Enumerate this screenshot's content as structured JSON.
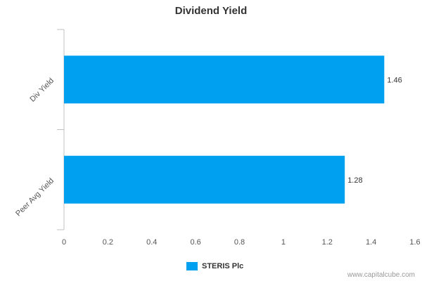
{
  "chart_data": {
    "type": "bar",
    "orientation": "horizontal",
    "title": "Dividend Yield",
    "categories": [
      "Div Yield",
      "Peer Avg Yield"
    ],
    "series": [
      {
        "name": "STERIS Plc",
        "values": [
          1.46,
          1.28
        ],
        "color": "#00a0f0"
      }
    ],
    "data_labels": [
      "1.46",
      "1.28"
    ],
    "xlim": [
      0,
      1.6
    ],
    "x_ticks": [
      "0",
      "0.2",
      "0.4",
      "0.6",
      "0.8",
      "1",
      "1.2",
      "1.4",
      "1.6"
    ],
    "grid": false,
    "legend_position": "bottom"
  },
  "credit": "www.capitalcube.com"
}
